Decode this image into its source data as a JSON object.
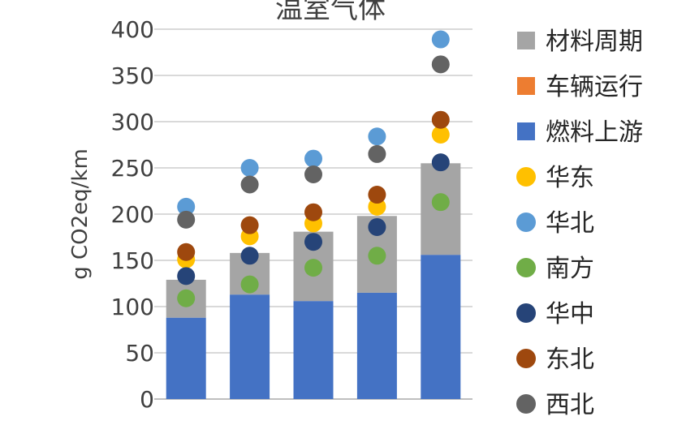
{
  "chart_data": {
    "type": "bar",
    "title": "温室气体",
    "ylabel": "g CO2eq/km",
    "xlabel": "",
    "ylim": [
      0,
      400
    ],
    "yticks": [
      0,
      50,
      100,
      150,
      200,
      250,
      300,
      350,
      400
    ],
    "grid": true,
    "legend_position": "right",
    "categories": [
      "",
      "",
      "",
      "",
      ""
    ],
    "stacked_series": [
      {
        "name": "燃料上游",
        "color": "#4472c4",
        "values": [
          88,
          113,
          106,
          115,
          156
        ]
      },
      {
        "name": "车辆运行",
        "color": "#ed7d31",
        "values": [
          0,
          0,
          0,
          0,
          0
        ]
      },
      {
        "name": "材料周期",
        "color": "#a5a5a5",
        "values": [
          41,
          45,
          75,
          83,
          99
        ]
      }
    ],
    "point_series": [
      {
        "name": "华东",
        "color": "#ffc000",
        "values": [
          151,
          176,
          190,
          208,
          286
        ]
      },
      {
        "name": "华北",
        "color": "#5b9bd5",
        "values": [
          208,
          250,
          260,
          284,
          389
        ]
      },
      {
        "name": "南方",
        "color": "#70ad47",
        "values": [
          109,
          124,
          142,
          155,
          213
        ]
      },
      {
        "name": "华中",
        "color": "#264478",
        "values": [
          133,
          155,
          170,
          186,
          256
        ]
      },
      {
        "name": "东北",
        "color": "#9e480e",
        "values": [
          159,
          188,
          202,
          221,
          302
        ]
      },
      {
        "name": "西北",
        "color": "#636363",
        "values": [
          194,
          232,
          243,
          265,
          362
        ]
      }
    ]
  },
  "legend": [
    {
      "label": "材料周期",
      "color": "#a5a5a5",
      "shape": "square"
    },
    {
      "label": "车辆运行",
      "color": "#ed7d31",
      "shape": "square"
    },
    {
      "label": "燃料上游",
      "color": "#4472c4",
      "shape": "square"
    },
    {
      "label": "华东",
      "color": "#ffc000",
      "shape": "circle"
    },
    {
      "label": "华北",
      "color": "#5b9bd5",
      "shape": "circle"
    },
    {
      "label": "南方",
      "color": "#70ad47",
      "shape": "circle"
    },
    {
      "label": "华中",
      "color": "#264478",
      "shape": "circle"
    },
    {
      "label": "东北",
      "color": "#9e480e",
      "shape": "circle"
    },
    {
      "label": "西北",
      "color": "#636363",
      "shape": "circle"
    }
  ]
}
